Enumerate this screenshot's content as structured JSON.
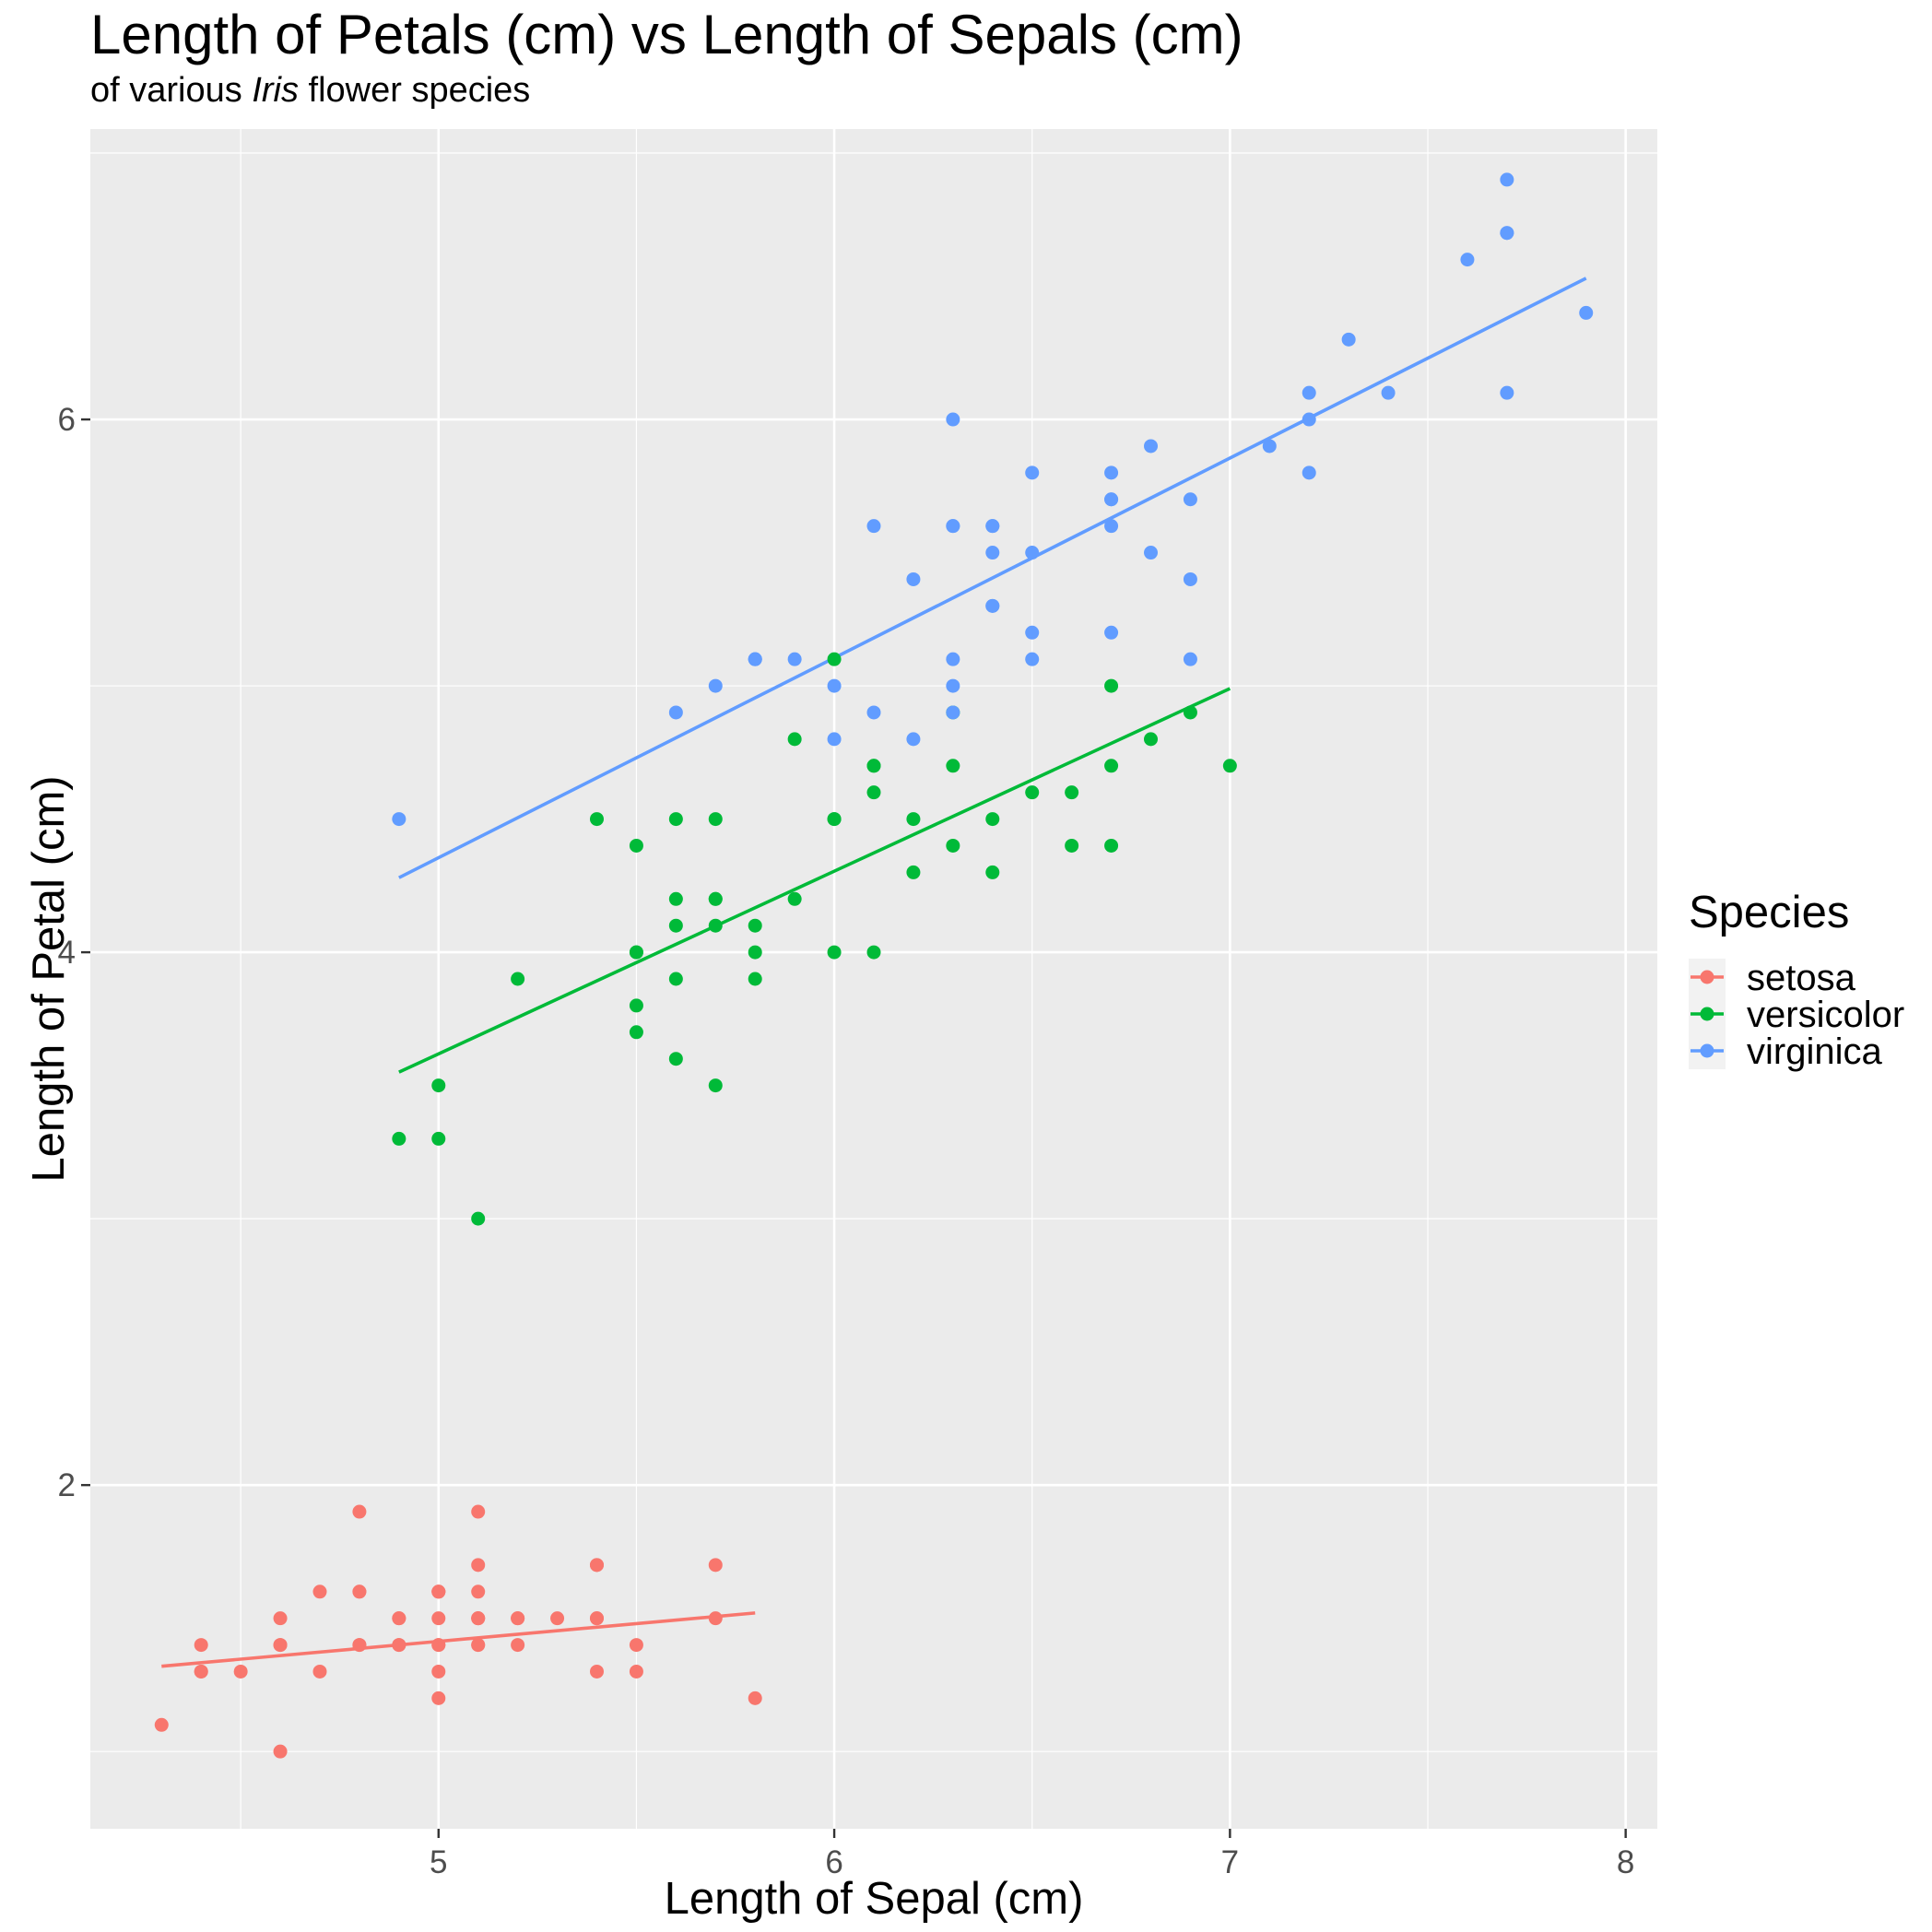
{
  "title": "Length of Petals (cm) vs Length of Sepals (cm)",
  "subtitle_pre": "of various ",
  "subtitle_em": "Iris",
  "subtitle_post": " flower species",
  "colors": {
    "setosa": "#f8766d",
    "versicolor": "#00ba38",
    "virginica": "#619cff",
    "panel": "#ebebeb",
    "grid": "#ffffff"
  },
  "chart_data": {
    "type": "scatter",
    "xlabel": "Length of Sepal (cm)",
    "ylabel": "Length of Petal (cm)",
    "xlim": [
      4.12,
      8.08
    ],
    "ylim": [
      0.71,
      7.09
    ],
    "x_ticks": [
      5,
      6,
      7,
      8
    ],
    "y_ticks": [
      2,
      4,
      6
    ],
    "grid": true,
    "legend": {
      "title": "Species",
      "position": "right"
    },
    "series": [
      {
        "name": "setosa",
        "x": [
          5.1,
          4.9,
          4.7,
          4.6,
          5.0,
          5.4,
          4.6,
          5.0,
          4.4,
          4.9,
          5.4,
          4.8,
          4.8,
          4.3,
          5.8,
          5.7,
          5.4,
          5.1,
          5.7,
          5.1,
          5.4,
          5.1,
          4.6,
          5.1,
          4.8,
          5.0,
          5.0,
          5.2,
          5.2,
          4.7,
          4.8,
          5.4,
          5.2,
          5.5,
          4.9,
          5.0,
          5.5,
          4.9,
          4.4,
          5.1,
          5.0,
          4.5,
          4.4,
          5.0,
          5.1,
          4.8,
          5.1,
          4.6,
          5.3,
          5.0
        ],
        "y": [
          1.4,
          1.4,
          1.3,
          1.5,
          1.4,
          1.7,
          1.4,
          1.5,
          1.4,
          1.5,
          1.5,
          1.6,
          1.4,
          1.1,
          1.2,
          1.5,
          1.3,
          1.4,
          1.7,
          1.5,
          1.7,
          1.5,
          1.0,
          1.7,
          1.9,
          1.6,
          1.6,
          1.5,
          1.4,
          1.6,
          1.6,
          1.5,
          1.5,
          1.4,
          1.5,
          1.2,
          1.3,
          1.4,
          1.3,
          1.5,
          1.3,
          1.3,
          1.3,
          1.6,
          1.9,
          1.4,
          1.6,
          1.4,
          1.5,
          1.4
        ],
        "fit": [
          [
            4.3,
            1.32
          ],
          [
            5.8,
            1.52
          ]
        ]
      },
      {
        "name": "versicolor",
        "x": [
          7.0,
          6.4,
          6.9,
          5.5,
          6.5,
          5.7,
          6.3,
          4.9,
          6.6,
          5.2,
          5.0,
          5.9,
          6.0,
          6.1,
          5.6,
          6.7,
          5.6,
          5.8,
          6.2,
          5.6,
          5.9,
          6.1,
          6.3,
          6.1,
          6.4,
          6.6,
          6.8,
          6.7,
          6.0,
          5.7,
          5.5,
          5.5,
          5.8,
          6.0,
          5.4,
          6.0,
          6.7,
          6.3,
          5.6,
          5.5,
          5.5,
          6.1,
          5.8,
          5.0,
          5.6,
          5.7,
          5.7,
          6.2,
          5.1,
          5.7
        ],
        "y": [
          4.7,
          4.5,
          4.9,
          4.0,
          4.6,
          4.5,
          4.7,
          3.3,
          4.6,
          3.9,
          3.5,
          4.2,
          4.0,
          4.7,
          3.6,
          4.4,
          4.5,
          4.1,
          4.5,
          3.9,
          4.8,
          4.0,
          4.9,
          4.7,
          4.3,
          4.4,
          4.8,
          5.0,
          4.5,
          3.5,
          3.8,
          3.7,
          3.9,
          5.1,
          4.5,
          4.5,
          4.7,
          4.4,
          4.1,
          4.0,
          4.4,
          4.6,
          4.0,
          3.3,
          4.2,
          4.2,
          4.2,
          4.3,
          3.0,
          4.1
        ],
        "fit": [
          [
            4.9,
            3.55
          ],
          [
            7.0,
            4.99
          ]
        ]
      },
      {
        "name": "virginica",
        "x": [
          6.3,
          5.8,
          7.1,
          6.3,
          6.5,
          7.6,
          4.9,
          7.3,
          6.7,
          7.2,
          6.5,
          6.4,
          6.8,
          5.7,
          5.8,
          6.4,
          6.5,
          7.7,
          7.7,
          6.0,
          6.9,
          5.6,
          7.7,
          6.3,
          6.7,
          7.2,
          6.2,
          6.1,
          6.4,
          7.2,
          7.4,
          7.9,
          6.4,
          6.3,
          6.1,
          7.7,
          6.3,
          6.4,
          6.0,
          6.9,
          6.7,
          6.9,
          5.8,
          6.8,
          6.7,
          6.7,
          6.3,
          6.5,
          6.2,
          5.9
        ],
        "y": [
          6.0,
          5.1,
          5.9,
          5.6,
          5.8,
          6.6,
          4.5,
          6.3,
          5.8,
          6.1,
          5.1,
          5.3,
          5.5,
          5.0,
          5.1,
          5.3,
          5.5,
          6.7,
          6.9,
          5.0,
          5.7,
          4.9,
          6.7,
          4.9,
          5.7,
          6.0,
          4.8,
          4.9,
          5.6,
          5.8,
          6.1,
          6.4,
          5.6,
          5.1,
          5.6,
          6.1,
          5.6,
          5.5,
          4.8,
          5.4,
          5.6,
          5.1,
          5.1,
          5.9,
          5.7,
          5.2,
          5.0,
          5.2,
          5.4,
          5.1
        ],
        "fit": [
          [
            4.9,
            4.28
          ],
          [
            7.9,
            6.53
          ]
        ]
      }
    ]
  }
}
